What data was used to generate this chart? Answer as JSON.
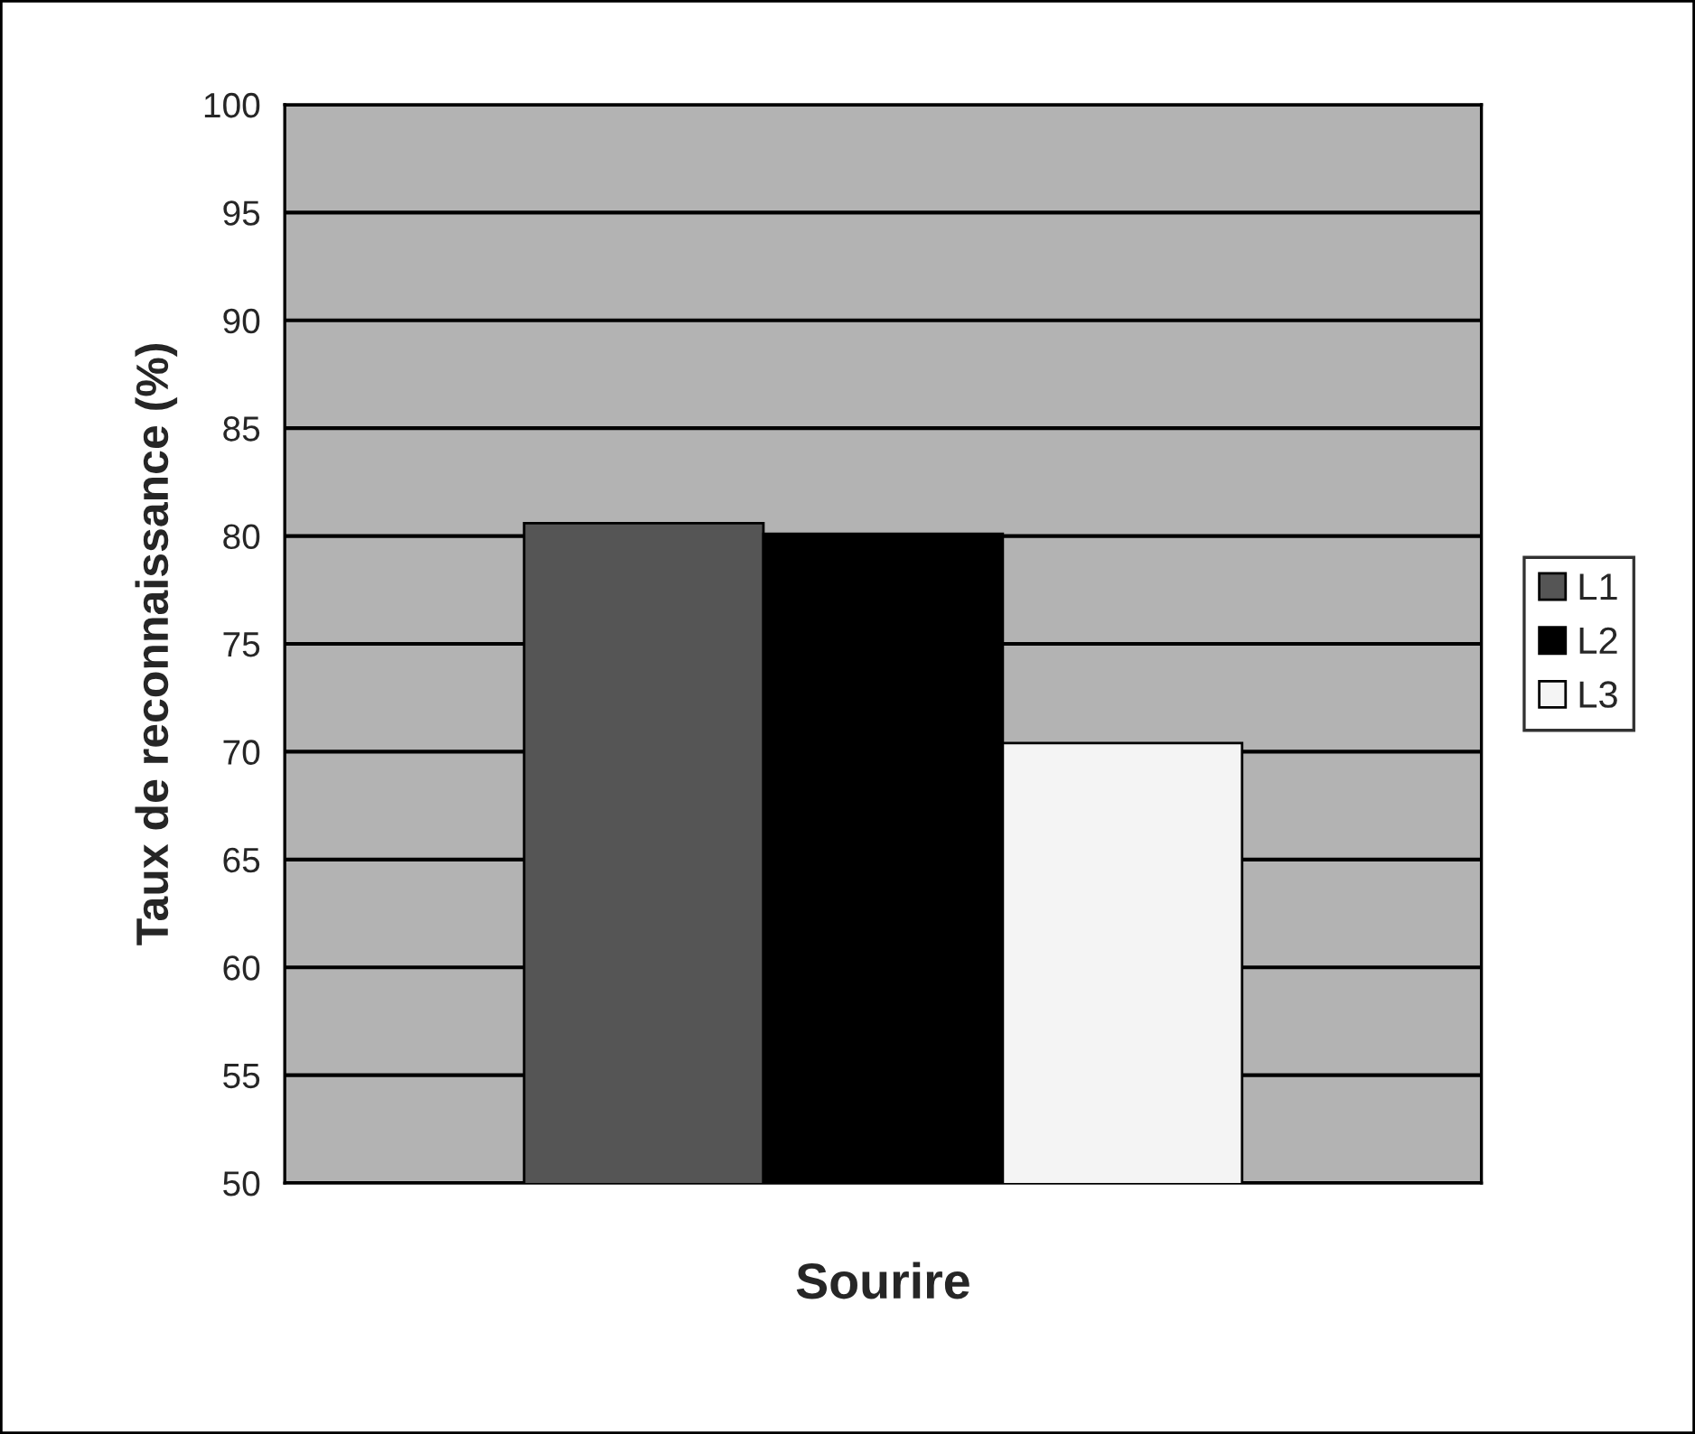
{
  "chart_data": {
    "type": "bar",
    "ylabel": "Taux de reconnaissance (%)",
    "xlabel": "Sourire",
    "categories": [
      null
    ],
    "series": [
      {
        "name": "L1",
        "color": "#555555",
        "values": [
          80.6
        ]
      },
      {
        "name": "L2",
        "color": "#000000",
        "values": [
          80.1
        ]
      },
      {
        "name": "L3",
        "color": "#f4f4f4",
        "values": [
          70.4
        ]
      }
    ],
    "ylim": [
      50,
      100
    ],
    "yticks": [
      50,
      55,
      60,
      65,
      70,
      75,
      80,
      85,
      90,
      95,
      100
    ],
    "grid": "y",
    "legend": "right"
  }
}
